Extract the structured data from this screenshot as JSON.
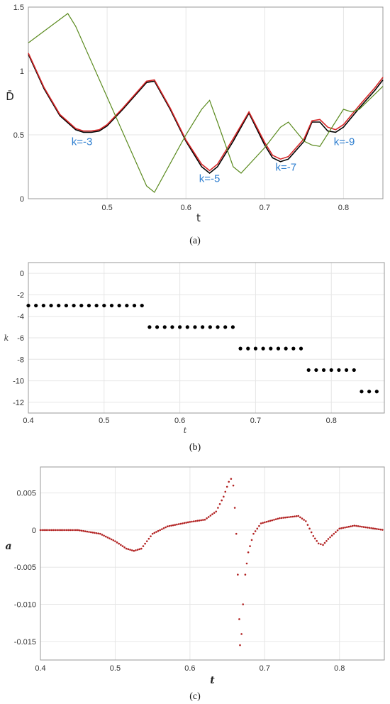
{
  "chart_data": [
    {
      "type": "line",
      "caption": "(a)",
      "xlabel": "t",
      "ylabel": "D̄",
      "xlim": [
        0.4,
        0.85
      ],
      "ylim": [
        0,
        1.5
      ],
      "xticks": [
        "0.5",
        "0.6",
        "0.7",
        "0.8"
      ],
      "yticks": [
        "0",
        "0.5",
        "1",
        "1.5"
      ],
      "grid": true,
      "series": [
        {
          "color": "#000000",
          "x": [
            0.4,
            0.42,
            0.44,
            0.46,
            0.47,
            0.48,
            0.49,
            0.5,
            0.52,
            0.55,
            0.56,
            0.58,
            0.6,
            0.62,
            0.63,
            0.64,
            0.66,
            0.68,
            0.7,
            0.71,
            0.72,
            0.73,
            0.75,
            0.76,
            0.77,
            0.78,
            0.79,
            0.8,
            0.82,
            0.84,
            0.85
          ],
          "y": [
            1.13,
            0.86,
            0.65,
            0.54,
            0.52,
            0.52,
            0.53,
            0.57,
            0.7,
            0.91,
            0.92,
            0.7,
            0.45,
            0.25,
            0.2,
            0.25,
            0.45,
            0.67,
            0.42,
            0.32,
            0.29,
            0.31,
            0.45,
            0.6,
            0.6,
            0.53,
            0.52,
            0.56,
            0.71,
            0.85,
            0.93
          ]
        },
        {
          "color": "#d62728",
          "x": [
            0.4,
            0.42,
            0.44,
            0.46,
            0.47,
            0.48,
            0.49,
            0.5,
            0.52,
            0.55,
            0.56,
            0.58,
            0.6,
            0.62,
            0.63,
            0.64,
            0.66,
            0.68,
            0.7,
            0.71,
            0.72,
            0.73,
            0.75,
            0.76,
            0.77,
            0.78,
            0.79,
            0.8,
            0.82,
            0.84,
            0.85
          ],
          "y": [
            1.14,
            0.87,
            0.66,
            0.55,
            0.53,
            0.53,
            0.54,
            0.58,
            0.71,
            0.92,
            0.93,
            0.71,
            0.46,
            0.27,
            0.22,
            0.27,
            0.47,
            0.68,
            0.44,
            0.34,
            0.31,
            0.33,
            0.47,
            0.61,
            0.62,
            0.56,
            0.54,
            0.58,
            0.73,
            0.87,
            0.95
          ]
        },
        {
          "color": "#5a8a1e",
          "x": [
            0.4,
            0.45,
            0.46,
            0.55,
            0.56,
            0.6,
            0.62,
            0.63,
            0.64,
            0.66,
            0.67,
            0.7,
            0.72,
            0.73,
            0.75,
            0.76,
            0.77,
            0.8,
            0.81,
            0.82,
            0.85
          ],
          "y": [
            1.22,
            1.45,
            1.35,
            0.1,
            0.05,
            0.5,
            0.7,
            0.77,
            0.6,
            0.25,
            0.2,
            0.4,
            0.56,
            0.6,
            0.45,
            0.42,
            0.41,
            0.7,
            0.68,
            0.7,
            0.88
          ]
        }
      ],
      "annotations": [
        {
          "text": "k=-3",
          "x": 0.468,
          "y": 0.42
        },
        {
          "text": "k=-5",
          "x": 0.63,
          "y": 0.13
        },
        {
          "text": "k=-7",
          "x": 0.727,
          "y": 0.22
        },
        {
          "text": "k=-9",
          "x": 0.801,
          "y": 0.42
        }
      ]
    },
    {
      "type": "scatter",
      "caption": "(b)",
      "xlabel": "t",
      "ylabel": "k",
      "xlim": [
        0.4,
        0.87
      ],
      "ylim": [
        -13,
        1
      ],
      "xticks": [
        "0.4",
        "0.5",
        "0.6",
        "0.7",
        "0.8"
      ],
      "yticks": [
        "0",
        "-2",
        "-4",
        "-6",
        "-8",
        "-10",
        "-12"
      ],
      "grid": true,
      "points": [
        {
          "x": 0.4,
          "y": -3
        },
        {
          "x": 0.41,
          "y": -3
        },
        {
          "x": 0.42,
          "y": -3
        },
        {
          "x": 0.43,
          "y": -3
        },
        {
          "x": 0.44,
          "y": -3
        },
        {
          "x": 0.45,
          "y": -3
        },
        {
          "x": 0.46,
          "y": -3
        },
        {
          "x": 0.47,
          "y": -3
        },
        {
          "x": 0.48,
          "y": -3
        },
        {
          "x": 0.49,
          "y": -3
        },
        {
          "x": 0.5,
          "y": -3
        },
        {
          "x": 0.51,
          "y": -3
        },
        {
          "x": 0.52,
          "y": -3
        },
        {
          "x": 0.53,
          "y": -3
        },
        {
          "x": 0.54,
          "y": -3
        },
        {
          "x": 0.55,
          "y": -3
        },
        {
          "x": 0.56,
          "y": -5
        },
        {
          "x": 0.57,
          "y": -5
        },
        {
          "x": 0.58,
          "y": -5
        },
        {
          "x": 0.59,
          "y": -5
        },
        {
          "x": 0.6,
          "y": -5
        },
        {
          "x": 0.61,
          "y": -5
        },
        {
          "x": 0.62,
          "y": -5
        },
        {
          "x": 0.63,
          "y": -5
        },
        {
          "x": 0.64,
          "y": -5
        },
        {
          "x": 0.65,
          "y": -5
        },
        {
          "x": 0.66,
          "y": -5
        },
        {
          "x": 0.67,
          "y": -5
        },
        {
          "x": 0.68,
          "y": -7
        },
        {
          "x": 0.69,
          "y": -7
        },
        {
          "x": 0.7,
          "y": -7
        },
        {
          "x": 0.71,
          "y": -7
        },
        {
          "x": 0.72,
          "y": -7
        },
        {
          "x": 0.73,
          "y": -7
        },
        {
          "x": 0.74,
          "y": -7
        },
        {
          "x": 0.75,
          "y": -7
        },
        {
          "x": 0.76,
          "y": -7
        },
        {
          "x": 0.77,
          "y": -9
        },
        {
          "x": 0.78,
          "y": -9
        },
        {
          "x": 0.79,
          "y": -9
        },
        {
          "x": 0.8,
          "y": -9
        },
        {
          "x": 0.81,
          "y": -9
        },
        {
          "x": 0.82,
          "y": -9
        },
        {
          "x": 0.83,
          "y": -9
        },
        {
          "x": 0.84,
          "y": -11
        },
        {
          "x": 0.85,
          "y": -11
        },
        {
          "x": 0.86,
          "y": -11
        }
      ]
    },
    {
      "type": "scatter",
      "caption": "(c)",
      "xlabel": "t",
      "ylabel": "a",
      "xlim": [
        0.4,
        0.86
      ],
      "ylim": [
        -0.0175,
        0.0085
      ],
      "xticks": [
        "0.4",
        "0.5",
        "0.6",
        "0.7",
        "0.8"
      ],
      "yticks": [
        "0.005",
        "0",
        "-0.005",
        "-0.010",
        "-0.015"
      ],
      "grid": true,
      "color": "#b22222",
      "curve": [
        {
          "x": 0.4,
          "y": 0
        },
        {
          "x": 0.45,
          "y": 0
        },
        {
          "x": 0.48,
          "y": -0.0005
        },
        {
          "x": 0.5,
          "y": -0.0015
        },
        {
          "x": 0.515,
          "y": -0.0025
        },
        {
          "x": 0.525,
          "y": -0.0028
        },
        {
          "x": 0.535,
          "y": -0.0025
        },
        {
          "x": 0.55,
          "y": -0.0005
        },
        {
          "x": 0.57,
          "y": 0.0005
        },
        {
          "x": 0.6,
          "y": 0.0011
        },
        {
          "x": 0.62,
          "y": 0.0014
        },
        {
          "x": 0.635,
          "y": 0.0025
        },
        {
          "x": 0.645,
          "y": 0.0045
        },
        {
          "x": 0.652,
          "y": 0.0065
        },
        {
          "x": 0.655,
          "y": 0.0069
        },
        {
          "x": 0.658,
          "y": 0.006
        },
        {
          "x": 0.66,
          "y": 0.003
        },
        {
          "x": 0.662,
          "y": -0.0005
        },
        {
          "x": 0.664,
          "y": -0.006
        },
        {
          "x": 0.666,
          "y": -0.012
        },
        {
          "x": 0.667,
          "y": -0.0155
        },
        {
          "x": 0.669,
          "y": -0.014
        },
        {
          "x": 0.671,
          "y": -0.01
        },
        {
          "x": 0.674,
          "y": -0.006
        },
        {
          "x": 0.678,
          "y": -0.003
        },
        {
          "x": 0.685,
          "y": -0.0005
        },
        {
          "x": 0.695,
          "y": 0.0009
        },
        {
          "x": 0.72,
          "y": 0.0016
        },
        {
          "x": 0.745,
          "y": 0.0019
        },
        {
          "x": 0.755,
          "y": 0.0012
        },
        {
          "x": 0.765,
          "y": -0.0008
        },
        {
          "x": 0.772,
          "y": -0.0018
        },
        {
          "x": 0.778,
          "y": -0.002
        },
        {
          "x": 0.785,
          "y": -0.0012
        },
        {
          "x": 0.8,
          "y": 0.0002
        },
        {
          "x": 0.82,
          "y": 0.0006
        },
        {
          "x": 0.84,
          "y": 0.0003
        },
        {
          "x": 0.86,
          "y": 0
        }
      ]
    }
  ]
}
